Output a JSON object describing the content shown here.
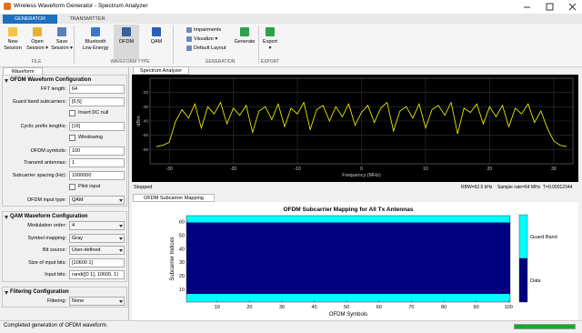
{
  "window": {
    "title": "Wireless Waveform Generator - Spectrum Analyzer"
  },
  "ribbon": {
    "tabs": [
      "GENERATOR",
      "TRANSMITTER"
    ],
    "buttons": [
      "New\nSession",
      "Open\nSession ▾",
      "Save\nSession ▾",
      "Bluetooth\nLow Energy",
      "OFDM",
      "QAM",
      "Generate",
      "Export\n▾"
    ],
    "small_buttons": [
      "Impairments",
      "Visualize ▾",
      "Default Layout"
    ],
    "groups": [
      "FILE",
      "WAVEFORM TYPE",
      "GENERATION",
      "EXPORT"
    ]
  },
  "panel": {
    "tab": "Waveform",
    "sections": [
      {
        "title": "OFDM Waveform Configuration",
        "fields": [
          {
            "label": "FFT length:",
            "value": "64"
          },
          {
            "label": "Guard band subcarriers:",
            "value": "[6;5]"
          },
          {
            "checkbox": "Insert DC null"
          },
          {
            "label": "Cyclic prefix lengths:",
            "value": "[16]"
          },
          {
            "checkbox": "Windowing"
          },
          {
            "label": "OFDM symbols:",
            "value": "100"
          },
          {
            "label": "Transmit antennas:",
            "value": "1"
          },
          {
            "label": "Subcarrier spacing (Hz):",
            "value": "1000000"
          },
          {
            "checkbox": "Pilot input"
          },
          {
            "label": "OFDM input type:",
            "value": "QAM",
            "dropdown": true
          }
        ]
      },
      {
        "title": "QAM Waveform Configuration",
        "fields": [
          {
            "label": "Modulation order:",
            "value": "4",
            "dropdown": true
          },
          {
            "label": "Symbol mapping:",
            "value": "Gray",
            "dropdown": true
          },
          {
            "label": "Bit source:",
            "value": "User-defined",
            "dropdown": true
          },
          {
            "label": "Size of input bits:",
            "value": "[10600     1]"
          },
          {
            "label": "Input bits:",
            "value": "randi([0 1], 10600, 1)"
          }
        ]
      },
      {
        "title": "Filtering Configuration",
        "fields": [
          {
            "label": "Filtering:",
            "value": "None",
            "dropdown": true
          }
        ]
      }
    ]
  },
  "spectrum": {
    "tab": "Spectrum Analyzer",
    "state": "Stopped",
    "rbw": "RBW=62.5 kHz",
    "sample_rate": "Sample rate=64 MHz",
    "time": "T=0.00012344"
  },
  "mapping": {
    "tab": "OFDM Subcarrier Mapping"
  },
  "status": "Completed generation of OFDM waveform.",
  "chart_data": [
    {
      "type": "line",
      "xlabel": "Frequency (MHz)",
      "ylabel": "dBm",
      "color": "#ffff00",
      "grid": true,
      "x": [
        -32,
        -31,
        -30,
        -29,
        -28,
        -27,
        -26,
        -25,
        -24,
        -23,
        -22,
        -21,
        -20,
        -19,
        -18,
        -17,
        -16,
        -15,
        -14,
        -13,
        -12,
        -11,
        -10,
        -9,
        -8,
        -7,
        -6,
        -5,
        -4,
        -3,
        -2,
        -1,
        0,
        1,
        2,
        3,
        4,
        5,
        6,
        7,
        8,
        9,
        10,
        11,
        12,
        13,
        14,
        15,
        16,
        17,
        18,
        19,
        20,
        21,
        22,
        23,
        24,
        25,
        26,
        27,
        28,
        29,
        30,
        31,
        32
      ],
      "values": [
        -58,
        -57,
        -55,
        -40,
        -32,
        -38,
        -28,
        -45,
        -30,
        -35,
        -27,
        -42,
        -31,
        -36,
        -29,
        -48,
        -33,
        -30,
        -39,
        -28,
        -44,
        -31,
        -35,
        -27,
        -46,
        -32,
        -29,
        -40,
        -30,
        -37,
        -28,
        -43,
        -34,
        -29,
        -41,
        -31,
        -27,
        -47,
        -33,
        -30,
        -38,
        -28,
        -45,
        -32,
        -29,
        -36,
        -27,
        -49,
        -31,
        -34,
        -28,
        -42,
        -30,
        -37,
        -29,
        -44,
        -31,
        -35,
        -28,
        -41,
        -33,
        -45,
        -54,
        -57,
        -58
      ],
      "xlim": [
        -33,
        33
      ],
      "ylim": [
        -70,
        -10
      ],
      "xticks": [
        -30,
        -20,
        -10,
        0,
        10,
        20,
        30
      ],
      "yticks": [
        -60,
        -50,
        -40,
        -30,
        -20
      ]
    },
    {
      "type": "heatmap",
      "title": "OFDM Subcarrier Mapping for All Tx Antennas",
      "xlabel": "OFDM Symbols",
      "ylabel": "Subcarrier Indices",
      "xlim": [
        0.5,
        100.5
      ],
      "ylim": [
        0.5,
        64.5
      ],
      "xticks": [
        10,
        20,
        30,
        40,
        50,
        60,
        70,
        80,
        90,
        100
      ],
      "yticks": [
        10,
        20,
        30,
        40,
        50,
        60
      ],
      "regions": [
        {
          "name": "Guard Band",
          "color": "#00ffff",
          "y": [
            0.5,
            6.5
          ]
        },
        {
          "name": "Data",
          "color": "#000080",
          "y": [
            6.5,
            59.5
          ]
        },
        {
          "name": "Guard Band",
          "color": "#00ffff",
          "y": [
            59.5,
            64.5
          ]
        }
      ]
    }
  ]
}
